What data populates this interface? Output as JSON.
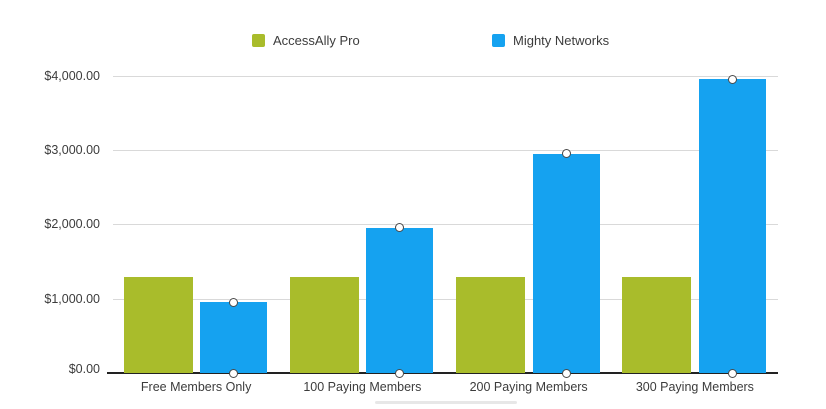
{
  "chart_data": {
    "type": "bar",
    "title": "",
    "categories": [
      "Free Members Only",
      "100 Paying Members",
      "200 Paying Members",
      "300 Paying Members"
    ],
    "series": [
      {
        "name": "AccessAlly Pro",
        "color": "#a9bc2b",
        "values": [
          1290,
          1290,
          1290,
          1290
        ],
        "markers": "none"
      },
      {
        "name": "Mighty Networks",
        "color": "#15a2f0",
        "values": [
          950,
          1950,
          2950,
          3950
        ],
        "markers": "top-and-baseline"
      }
    ],
    "y_axis": {
      "tick_labels": [
        "$0.00",
        "$1,000.00",
        "$2,000.00",
        "$3,000.00",
        "$4,000.00"
      ],
      "tick_values": [
        0,
        1000,
        2000,
        3000,
        4000
      ],
      "min": 0,
      "max": 4000
    },
    "x_axis": {
      "label": ""
    },
    "grid": true,
    "legend_position": "top",
    "marker_style": {
      "fill": "#ffffff",
      "stroke": "#4a4a4a"
    },
    "colors": {
      "gridline": "#d9d9d9",
      "axis_line": "#222222",
      "label_text": "#3c3c3c",
      "background": "#ffffff"
    }
  }
}
